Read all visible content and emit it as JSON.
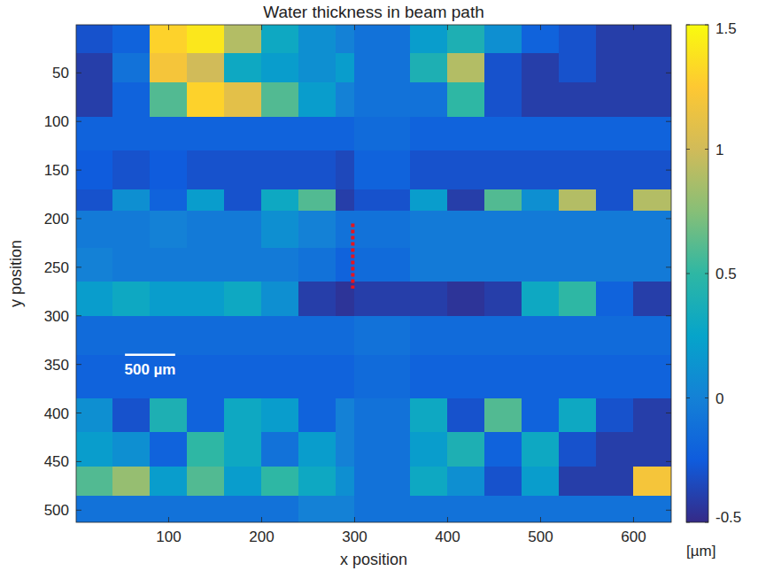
{
  "chart_data": {
    "type": "heatmap",
    "title": "Water thickness in beam path",
    "x_label": "x position",
    "y_label": "y position",
    "xlim": [
      0.5,
      640.5
    ],
    "ylim": [
      0.5,
      512.5
    ],
    "xticks": [
      100,
      200,
      300,
      400,
      500,
      600
    ],
    "yticks": [
      50,
      100,
      150,
      200,
      250,
      300,
      350,
      400,
      450,
      500
    ],
    "x_edges": [
      0.5,
      40,
      80,
      120,
      160,
      200,
      240,
      280,
      300,
      360,
      400,
      440,
      480,
      520,
      560,
      600,
      640.5
    ],
    "y_edges": [
      0.5,
      30,
      60,
      95,
      130,
      170,
      192,
      230,
      265,
      300,
      340,
      385,
      420,
      455,
      485,
      512.5
    ],
    "values": [
      [
        -0.3,
        -0.2,
        1.3,
        1.4,
        0.9,
        0.3,
        0.1,
        0.0,
        -0.1,
        0.2,
        0.4,
        0.1,
        -0.2,
        -0.3,
        -0.4,
        -0.4
      ],
      [
        -0.4,
        -0.1,
        1.2,
        1.0,
        0.3,
        0.2,
        0.1,
        0.2,
        -0.1,
        0.4,
        0.9,
        -0.3,
        -0.4,
        -0.3,
        -0.4,
        -0.4
      ],
      [
        -0.4,
        -0.2,
        0.6,
        1.3,
        1.1,
        0.6,
        0.2,
        0.0,
        -0.1,
        -0.1,
        0.5,
        -0.3,
        -0.4,
        -0.4,
        -0.4,
        -0.4
      ],
      [
        -0.2,
        -0.2,
        -0.2,
        -0.2,
        -0.2,
        -0.2,
        -0.2,
        -0.2,
        -0.15,
        -0.2,
        -0.2,
        -0.2,
        -0.2,
        -0.2,
        -0.2,
        -0.2
      ],
      [
        -0.25,
        -0.3,
        -0.25,
        -0.3,
        -0.3,
        -0.3,
        -0.3,
        -0.35,
        -0.2,
        -0.3,
        -0.3,
        -0.3,
        -0.3,
        -0.3,
        -0.3,
        -0.3
      ],
      [
        -0.3,
        0.1,
        -0.2,
        0.2,
        -0.3,
        0.3,
        0.6,
        -0.4,
        -0.3,
        0.2,
        -0.4,
        0.6,
        0.1,
        0.9,
        -0.3,
        0.9
      ],
      [
        -0.05,
        -0.05,
        0.0,
        -0.05,
        -0.05,
        0.1,
        0.0,
        -0.1,
        -0.1,
        -0.05,
        -0.05,
        -0.05,
        -0.05,
        -0.05,
        -0.05,
        -0.05
      ],
      [
        0.0,
        -0.05,
        -0.05,
        -0.05,
        -0.05,
        -0.05,
        -0.1,
        -0.2,
        -0.15,
        -0.05,
        -0.05,
        -0.05,
        -0.05,
        -0.05,
        -0.05,
        -0.05
      ],
      [
        0.2,
        0.3,
        0.2,
        0.2,
        0.3,
        0.1,
        -0.4,
        -0.45,
        -0.4,
        -0.4,
        -0.45,
        -0.4,
        0.3,
        0.5,
        -0.2,
        -0.4
      ],
      [
        -0.15,
        -0.15,
        -0.15,
        -0.15,
        -0.15,
        -0.15,
        -0.15,
        -0.15,
        -0.1,
        -0.15,
        -0.15,
        -0.15,
        -0.15,
        -0.15,
        -0.15,
        -0.15
      ],
      [
        -0.2,
        -0.2,
        -0.2,
        -0.2,
        -0.2,
        -0.2,
        -0.2,
        -0.2,
        -0.15,
        -0.2,
        -0.2,
        -0.2,
        -0.2,
        -0.2,
        -0.2,
        -0.2
      ],
      [
        0.1,
        -0.3,
        0.4,
        -0.2,
        0.3,
        0.2,
        -0.2,
        0.0,
        -0.1,
        0.3,
        -0.3,
        0.6,
        -0.2,
        0.3,
        -0.3,
        -0.4
      ],
      [
        0.2,
        0.1,
        -0.2,
        0.5,
        0.3,
        -0.1,
        0.2,
        0.0,
        -0.1,
        0.2,
        0.4,
        -0.2,
        0.3,
        -0.3,
        -0.4,
        -0.4
      ],
      [
        0.6,
        0.8,
        0.2,
        0.6,
        0.2,
        0.5,
        0.3,
        0.1,
        -0.1,
        0.3,
        0.1,
        -0.3,
        0.2,
        -0.4,
        -0.4,
        1.2
      ],
      [
        -0.1,
        -0.1,
        -0.1,
        -0.1,
        -0.1,
        -0.1,
        0.0,
        0.0,
        -0.1,
        -0.1,
        -0.1,
        -0.1,
        -0.1,
        -0.1,
        -0.1,
        -0.1
      ]
    ],
    "colorbar": {
      "range": [
        -0.5,
        1.5
      ],
      "ticks": [
        -0.5,
        0,
        0.5,
        1,
        1.5
      ],
      "label": "[µm]"
    },
    "scale_bar": {
      "label": "500 µm",
      "x": [
        53,
        107
      ],
      "y": 340
    },
    "marker_line": {
      "x": [
        298,
        298
      ],
      "y": [
        205,
        272
      ],
      "color": "#e8141c"
    }
  }
}
